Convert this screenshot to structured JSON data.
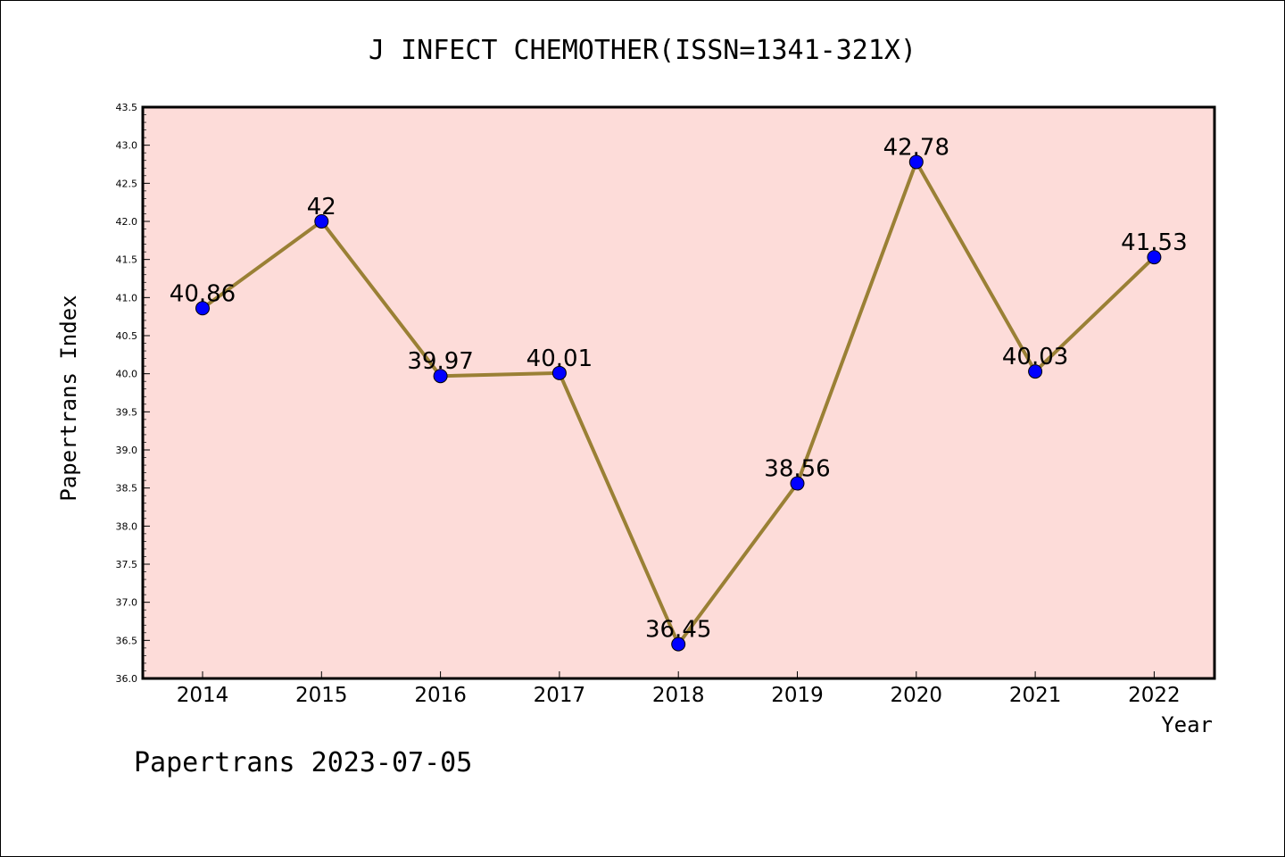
{
  "chart_data": {
    "type": "line",
    "title": "J INFECT CHEMOTHER(ISSN=1341-321X)",
    "xlabel": "Year",
    "ylabel": "Papertrans Index",
    "categories": [
      "2014",
      "2015",
      "2016",
      "2017",
      "2018",
      "2019",
      "2020",
      "2021",
      "2022"
    ],
    "series": [
      {
        "values": [
          40.86,
          42,
          39.97,
          40.01,
          36.45,
          38.56,
          42.78,
          40.03,
          41.53
        ],
        "labels": [
          "40.86",
          "42",
          "39.97",
          "40.01",
          "36.45",
          "38.56",
          "42.78",
          "40.03",
          "41.53"
        ]
      }
    ],
    "ylim": [
      36.0,
      43.5
    ],
    "yticks": [
      "36.0",
      "36.5",
      "37.0",
      "37.5",
      "38.0",
      "38.5",
      "39.0",
      "39.5",
      "40.0",
      "40.5",
      "41.0",
      "41.5",
      "42.0",
      "42.5",
      "43.0",
      "43.5"
    ],
    "grid": false,
    "colors": {
      "plot_background": "#fddcd9",
      "line": "#9a8035",
      "marker": "#0000ff"
    }
  },
  "footer": "Papertrans 2023-07-05"
}
